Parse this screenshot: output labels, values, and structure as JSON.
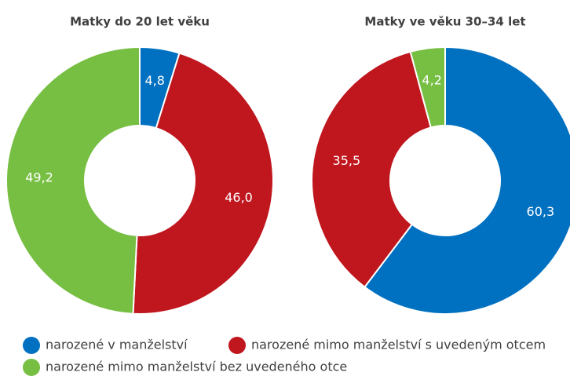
{
  "legend": [
    {
      "name": "narozené v manželství",
      "color": "#0070c0"
    },
    {
      "name": "narozené mimo manželství s uvedeným otcem",
      "color": "#c0161e"
    },
    {
      "name": "narozené mimo manželství bez uvedeného otce",
      "color": "#77bf43"
    }
  ],
  "chart_data": [
    {
      "type": "pie",
      "title": "Matky do 20 let věku",
      "values": [
        4.8,
        46.0,
        49.2
      ],
      "value_labels": [
        "4,8",
        "46,0",
        "49,2"
      ]
    },
    {
      "type": "pie",
      "title": "Matky ve věku 30–34 let",
      "values": [
        60.3,
        35.5,
        4.2
      ],
      "value_labels": [
        "60,3",
        "35,5",
        "4,2"
      ]
    }
  ]
}
